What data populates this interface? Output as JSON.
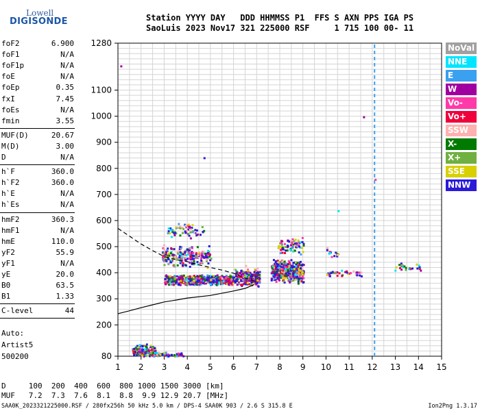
{
  "logo": {
    "top": "Lowell",
    "main": "DIGISONDE"
  },
  "header": {
    "line1": "Station YYYY DAY   DDD HHMMSS P1  FFS S AXN PPS IGA PS",
    "line2": "SaoLuis 2023 Nov17 321 225000 RSF     1 715 100 00- 11"
  },
  "params": [
    {
      "k": "foF2",
      "v": "6.900"
    },
    {
      "k": "foF1",
      "v": "N/A"
    },
    {
      "k": "foF1p",
      "v": "N/A"
    },
    {
      "k": "foE",
      "v": "N/A"
    },
    {
      "k": "foEp",
      "v": "0.35"
    },
    {
      "k": "fxI",
      "v": "7.45"
    },
    {
      "k": "foEs",
      "v": "N/A"
    },
    {
      "k": "fmin",
      "v": "3.55"
    },
    {
      "k": "MUF(D)",
      "v": "20.67"
    },
    {
      "k": "M(D)",
      "v": "3.00"
    },
    {
      "k": "D",
      "v": "N/A"
    },
    {
      "k": "h`F",
      "v": "360.0"
    },
    {
      "k": "h`F2",
      "v": "360.0"
    },
    {
      "k": "h`E",
      "v": "N/A"
    },
    {
      "k": "h`Es",
      "v": "N/A"
    },
    {
      "k": "hmF2",
      "v": "360.3"
    },
    {
      "k": "hmF1",
      "v": "N/A"
    },
    {
      "k": "hmE",
      "v": "110.0"
    },
    {
      "k": "yF2",
      "v": "55.9"
    },
    {
      "k": "yF1",
      "v": "N/A"
    },
    {
      "k": "yE",
      "v": "20.0"
    },
    {
      "k": "B0",
      "v": "63.5"
    },
    {
      "k": "B1",
      "v": "1.33"
    },
    {
      "k": "C-level",
      "v": "44"
    }
  ],
  "auto": [
    "Auto:",
    "Artist5",
    "500200"
  ],
  "legend": [
    {
      "label": "NoVal",
      "color": "#a0a0a0"
    },
    {
      "label": "NNE",
      "color": "#00e5ff"
    },
    {
      "label": "E",
      "color": "#3aa0f0"
    },
    {
      "label": "W",
      "color": "#a000a0"
    },
    {
      "label": "Vo-",
      "color": "#ff3aa8"
    },
    {
      "label": "Vo+",
      "color": "#f0003c"
    },
    {
      "label": "SSW",
      "color": "#ffb0b0"
    },
    {
      "label": "X-",
      "color": "#007a00"
    },
    {
      "label": "X+",
      "color": "#70b040"
    },
    {
      "label": "SSE",
      "color": "#d8d000"
    },
    {
      "label": "NNW",
      "color": "#2a1ad8"
    }
  ],
  "bottom": {
    "d_row": "D     100  200  400  600  800 1000 1500 3000 [km]",
    "muf_row": "MUF   7.2  7.3  7.6  8.1  8.8  9.9 12.9 20.7 [MHz]",
    "footer_left": "SAA0K_2023321225000.RSF / 280fx256h 50 kHz 5.0 km / DPS-4 SAA0K 903 / 2.6 S 315.8 E",
    "footer_right": "Ion2Png 1.3.17"
  },
  "chart_data": {
    "type": "scatter",
    "xlabel": "",
    "ylabel": "",
    "xlim": [
      1,
      15
    ],
    "ylim": [
      80,
      1280
    ],
    "xticks": [
      1,
      2,
      3,
      4,
      5,
      6,
      7,
      8,
      9,
      10,
      11,
      12,
      13,
      14,
      15
    ],
    "yticks": [
      80,
      200,
      300,
      400,
      500,
      600,
      700,
      800,
      900,
      1000,
      1100,
      1280
    ],
    "grid": true,
    "marker_line": {
      "x": 12.1
    },
    "curves": [
      {
        "name": "profile",
        "style": "solid",
        "points": [
          [
            1,
            243
          ],
          [
            1.5,
            254
          ],
          [
            2,
            266
          ],
          [
            2.5,
            277
          ],
          [
            3,
            288
          ],
          [
            3.5,
            295
          ],
          [
            4,
            303
          ],
          [
            5,
            313
          ],
          [
            6,
            330
          ],
          [
            6.5,
            340
          ],
          [
            6.9,
            355
          ]
        ]
      },
      {
        "name": "virtual-height",
        "style": "dashed",
        "points": [
          [
            1,
            570
          ],
          [
            1.5,
            540
          ],
          [
            2,
            510
          ],
          [
            2.5,
            485
          ],
          [
            3,
            462
          ],
          [
            3.5,
            450
          ],
          [
            4,
            443
          ],
          [
            4.5,
            430
          ],
          [
            5,
            420
          ],
          [
            5.5,
            410
          ],
          [
            6,
            398
          ],
          [
            6.5,
            380
          ],
          [
            7,
            365
          ]
        ]
      }
    ],
    "echo_clusters": [
      {
        "x": [
          3.0,
          6.0
        ],
        "y": [
          355,
          395
        ],
        "n": 900
      },
      {
        "x": [
          2.9,
          5.0
        ],
        "y": [
          420,
          510
        ],
        "n": 230
      },
      {
        "x": [
          3.1,
          4.7
        ],
        "y": [
          535,
          595
        ],
        "n": 60
      },
      {
        "x": [
          6.0,
          7.1
        ],
        "y": [
          350,
          420
        ],
        "n": 200
      },
      {
        "x": [
          7.6,
          9.0
        ],
        "y": [
          360,
          460
        ],
        "n": 420
      },
      {
        "x": [
          7.9,
          9.0
        ],
        "y": [
          470,
          540
        ],
        "n": 80
      },
      {
        "x": [
          1.6,
          2.6
        ],
        "y": [
          80,
          130
        ],
        "n": 160
      },
      {
        "x": [
          2.6,
          3.8
        ],
        "y": [
          80,
          100
        ],
        "n": 50
      },
      {
        "x": [
          9.9,
          11.5
        ],
        "y": [
          385,
          415
        ],
        "n": 40
      },
      {
        "x": [
          10.0,
          10.6
        ],
        "y": [
          455,
          500
        ],
        "n": 14
      },
      {
        "x": [
          12.9,
          14.1
        ],
        "y": [
          408,
          440
        ],
        "n": 24
      }
    ],
    "isolated_points": [
      [
        1.1,
        1195
      ],
      [
        4.7,
        843
      ],
      [
        10.5,
        640
      ],
      [
        11.6,
        1000
      ],
      [
        12.1,
        760
      ],
      [
        6.5,
        430
      ],
      [
        7.0,
        420
      ]
    ]
  }
}
